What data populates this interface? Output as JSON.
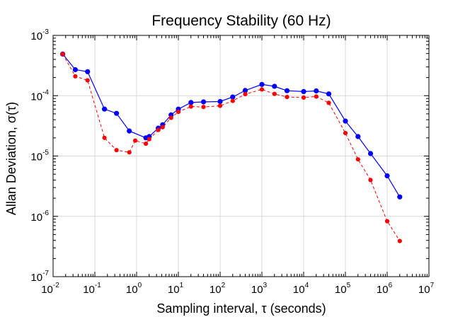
{
  "chart_data": {
    "type": "line",
    "title": "Frequency Stability (60 Hz)",
    "xlabel": "Sampling interval, τ (seconds)",
    "ylabel": "Allan Deviation, σ(τ)",
    "xscale": "log",
    "yscale": "log",
    "xlim": [
      0.01,
      10000000
    ],
    "ylim": [
      1e-07,
      0.001
    ],
    "grid": true,
    "x_ticks": [
      {
        "base": "10",
        "exp": "-2"
      },
      {
        "base": "10",
        "exp": "-1"
      },
      {
        "base": "10",
        "exp": "0"
      },
      {
        "base": "10",
        "exp": "1"
      },
      {
        "base": "10",
        "exp": "2"
      },
      {
        "base": "10",
        "exp": "3"
      },
      {
        "base": "10",
        "exp": "4"
      },
      {
        "base": "10",
        "exp": "5"
      },
      {
        "base": "10",
        "exp": "6"
      },
      {
        "base": "10",
        "exp": "7"
      }
    ],
    "y_ticks": [
      {
        "base": "10",
        "exp": "-7"
      },
      {
        "base": "10",
        "exp": "-6"
      },
      {
        "base": "10",
        "exp": "-5"
      },
      {
        "base": "10",
        "exp": "-4"
      },
      {
        "base": "10",
        "exp": "-3"
      }
    ],
    "series": [
      {
        "color": "#0000ff",
        "line_style": "solid",
        "x": [
          0.017,
          0.034,
          0.067,
          0.17,
          0.33,
          0.67,
          1.67,
          2.0,
          3.3,
          4.2,
          6.7,
          10,
          20,
          40,
          100,
          200,
          400,
          1000,
          2000,
          4000,
          10000,
          20000,
          40000,
          100000,
          200000,
          400000,
          1000000,
          2000000
        ],
        "y": [
          0.00049,
          0.00027,
          0.00025,
          6e-05,
          5.1e-05,
          2.6e-05,
          2e-05,
          2.1e-05,
          2.9e-05,
          3.3e-05,
          4.8e-05,
          6e-05,
          7.7e-05,
          7.9e-05,
          8e-05,
          9.5e-05,
          0.000122,
          0.000154,
          0.000143,
          0.000121,
          0.000117,
          0.00012,
          0.000107,
          3.8e-05,
          2.1e-05,
          1.1e-05,
          4.7e-06,
          2.1e-06
        ]
      },
      {
        "color": "#ff0000",
        "line_style": "dashed",
        "x": [
          0.017,
          0.034,
          0.067,
          0.17,
          0.33,
          0.67,
          0.93,
          1.67,
          2.0,
          3.3,
          4.2,
          6.7,
          10,
          20,
          40,
          100,
          200,
          400,
          1000,
          2000,
          4000,
          10000,
          20000,
          40000,
          100000,
          200000,
          400000,
          1000000,
          2000000
        ],
        "y": [
          0.00049,
          0.00021,
          0.00018,
          2e-05,
          1.25e-05,
          1.15e-05,
          1.8e-05,
          1.6e-05,
          1.9e-05,
          2.7e-05,
          3e-05,
          4.3e-05,
          5.4e-05,
          6.6e-05,
          6.5e-05,
          6.8e-05,
          8.2e-05,
          0.000106,
          0.000127,
          0.000107,
          9.5e-05,
          9.3e-05,
          9.7e-05,
          7.6e-05,
          2.4e-05,
          8.8e-06,
          4e-06,
          8.3e-07,
          3.9e-07
        ]
      }
    ]
  }
}
